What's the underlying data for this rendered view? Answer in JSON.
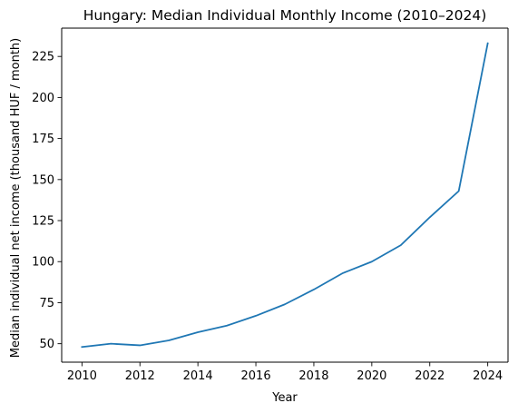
{
  "chart_data": {
    "type": "line",
    "title": "Hungary: Median Individual Monthly Income (2010–2024)",
    "xlabel": "Year",
    "ylabel": "Median individual net income (thousand HUF / month)",
    "x": [
      2010,
      2011,
      2012,
      2013,
      2014,
      2015,
      2016,
      2017,
      2018,
      2019,
      2020,
      2021,
      2022,
      2023,
      2024
    ],
    "series": [
      {
        "values": [
          48,
          50,
          49,
          52,
          57,
          61,
          67,
          74,
          83,
          93,
          100,
          110,
          127,
          143,
          233
        ],
        "color": "#1f77b4"
      }
    ],
    "xlim": [
      2009.3,
      2024.7
    ],
    "ylim": [
      38.75,
      242.25
    ],
    "xticks": [
      2010,
      2012,
      2014,
      2016,
      2018,
      2020,
      2022,
      2024
    ],
    "yticks": [
      50,
      75,
      100,
      125,
      150,
      175,
      200,
      225
    ],
    "grid": false
  }
}
